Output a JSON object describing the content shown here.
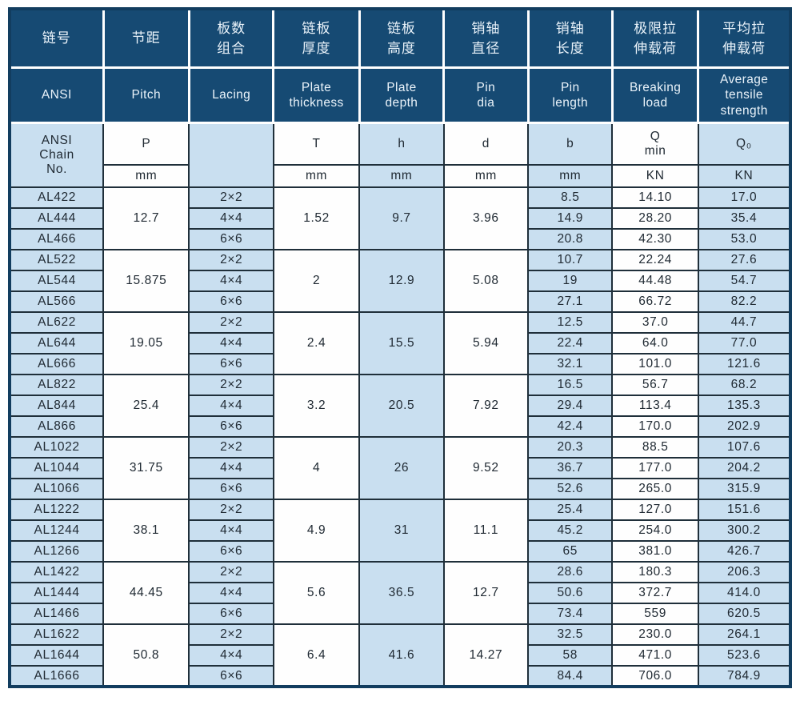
{
  "table": {
    "headers_cn": [
      {
        "key": "chain-no",
        "label": "链号"
      },
      {
        "key": "pitch",
        "label": "节距"
      },
      {
        "key": "lacing",
        "label": "板数\n组合"
      },
      {
        "key": "plate-thickness",
        "label": "链板\n厚度"
      },
      {
        "key": "plate-depth",
        "label": "链板\n高度"
      },
      {
        "key": "pin-dia",
        "label": "销轴\n直径"
      },
      {
        "key": "pin-length",
        "label": "销轴\n长度"
      },
      {
        "key": "breaking-load",
        "label": "极限拉\n伸载荷"
      },
      {
        "key": "avg-tensile",
        "label": "平均拉\n伸载荷"
      }
    ],
    "headers_en": [
      {
        "key": "chain-no",
        "label": "ANSI"
      },
      {
        "key": "pitch",
        "label": "Pitch"
      },
      {
        "key": "lacing",
        "label": "Lacing"
      },
      {
        "key": "plate-thickness",
        "label": "Plate\nthickness"
      },
      {
        "key": "plate-depth",
        "label": "Plate\ndepth"
      },
      {
        "key": "pin-dia",
        "label": "Pin\ndia"
      },
      {
        "key": "pin-length",
        "label": "Pin\nlength"
      },
      {
        "key": "breaking-load",
        "label": "Breaking\nload"
      },
      {
        "key": "avg-tensile",
        "label": "Average\ntensile\nstrength"
      }
    ],
    "symbols": {
      "chain_no": "ANSI\nChain\nNo.",
      "p": "P",
      "lacing": "",
      "t": "T",
      "h": "h",
      "d": "d",
      "b": "b",
      "q": "Q\nmin",
      "q0": "Q₀"
    },
    "units": {
      "p": "mm",
      "t": "mm",
      "h": "mm",
      "d": "mm",
      "b": "mm",
      "q": "KN",
      "q0": "KN"
    },
    "groups": [
      {
        "pitch": "12.7",
        "thickness": "1.52",
        "depth": "9.7",
        "dia": "3.96",
        "rows": [
          {
            "no": "AL422",
            "lacing": "2×2",
            "b": "8.5",
            "q": "14.10",
            "q0": "17.0"
          },
          {
            "no": "AL444",
            "lacing": "4×4",
            "b": "14.9",
            "q": "28.20",
            "q0": "35.4"
          },
          {
            "no": "AL466",
            "lacing": "6×6",
            "b": "20.8",
            "q": "42.30",
            "q0": "53.0"
          }
        ]
      },
      {
        "pitch": "15.875",
        "thickness": "2",
        "depth": "12.9",
        "dia": "5.08",
        "rows": [
          {
            "no": "AL522",
            "lacing": "2×2",
            "b": "10.7",
            "q": "22.24",
            "q0": "27.6"
          },
          {
            "no": "AL544",
            "lacing": "4×4",
            "b": "19",
            "q": "44.48",
            "q0": "54.7"
          },
          {
            "no": "AL566",
            "lacing": "6×6",
            "b": "27.1",
            "q": "66.72",
            "q0": "82.2"
          }
        ]
      },
      {
        "pitch": "19.05",
        "thickness": "2.4",
        "depth": "15.5",
        "dia": "5.94",
        "rows": [
          {
            "no": "AL622",
            "lacing": "2×2",
            "b": "12.5",
            "q": "37.0",
            "q0": "44.7"
          },
          {
            "no": "AL644",
            "lacing": "4×4",
            "b": "22.4",
            "q": "64.0",
            "q0": "77.0"
          },
          {
            "no": "AL666",
            "lacing": "6×6",
            "b": "32.1",
            "q": "101.0",
            "q0": "121.6"
          }
        ]
      },
      {
        "pitch": "25.4",
        "thickness": "3.2",
        "depth": "20.5",
        "dia": "7.92",
        "rows": [
          {
            "no": "AL822",
            "lacing": "2×2",
            "b": "16.5",
            "q": "56.7",
            "q0": "68.2"
          },
          {
            "no": "AL844",
            "lacing": "4×4",
            "b": "29.4",
            "q": "113.4",
            "q0": "135.3"
          },
          {
            "no": "AL866",
            "lacing": "6×6",
            "b": "42.4",
            "q": "170.0",
            "q0": "202.9"
          }
        ]
      },
      {
        "pitch": "31.75",
        "thickness": "4",
        "depth": "26",
        "dia": "9.52",
        "rows": [
          {
            "no": "AL1022",
            "lacing": "2×2",
            "b": "20.3",
            "q": "88.5",
            "q0": "107.6"
          },
          {
            "no": "AL1044",
            "lacing": "4×4",
            "b": "36.7",
            "q": "177.0",
            "q0": "204.2"
          },
          {
            "no": "AL1066",
            "lacing": "6×6",
            "b": "52.6",
            "q": "265.0",
            "q0": "315.9"
          }
        ]
      },
      {
        "pitch": "38.1",
        "thickness": "4.9",
        "depth": "31",
        "dia": "11.1",
        "rows": [
          {
            "no": "AL1222",
            "lacing": "2×2",
            "b": "25.4",
            "q": "127.0",
            "q0": "151.6"
          },
          {
            "no": "AL1244",
            "lacing": "4×4",
            "b": "45.2",
            "q": "254.0",
            "q0": "300.2"
          },
          {
            "no": "AL1266",
            "lacing": "6×6",
            "b": "65",
            "q": "381.0",
            "q0": "426.7"
          }
        ]
      },
      {
        "pitch": "44.45",
        "thickness": "5.6",
        "depth": "36.5",
        "dia": "12.7",
        "rows": [
          {
            "no": "AL1422",
            "lacing": "2×2",
            "b": "28.6",
            "q": "180.3",
            "q0": "206.3"
          },
          {
            "no": "AL1444",
            "lacing": "4×4",
            "b": "50.6",
            "q": "372.7",
            "q0": "414.0"
          },
          {
            "no": "AL1466",
            "lacing": "6×6",
            "b": "73.4",
            "q": "559",
            "q0": "620.5"
          }
        ]
      },
      {
        "pitch": "50.8",
        "thickness": "6.4",
        "depth": "41.6",
        "dia": "14.27",
        "rows": [
          {
            "no": "AL1622",
            "lacing": "2×2",
            "b": "32.5",
            "q": "230.0",
            "q0": "264.1"
          },
          {
            "no": "AL1644",
            "lacing": "4×4",
            "b": "58",
            "q": "471.0",
            "q0": "523.6"
          },
          {
            "no": "AL1666",
            "lacing": "6×6",
            "b": "84.4",
            "q": "706.0",
            "q0": "784.9"
          }
        ]
      }
    ]
  },
  "colors": {
    "header_bg": "#164a73",
    "light_cell": "#c9dff0",
    "white_cell": "#fefefe",
    "grid_line": "#1f2f3a",
    "header_grid": "#ffffff",
    "outer_border": "#123d5f",
    "header_text": "#eaf3fa",
    "body_text": "#202a33"
  }
}
